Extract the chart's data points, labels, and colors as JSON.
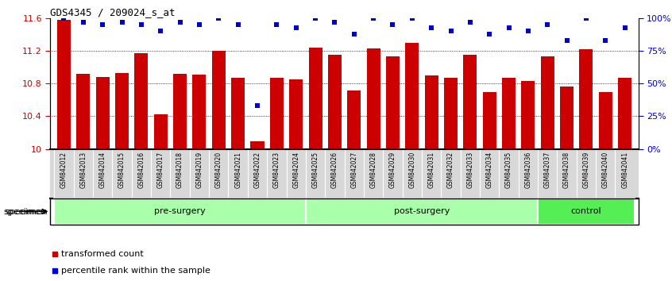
{
  "title": "GDS4345 / 209024_s_at",
  "categories": [
    "GSM842012",
    "GSM842013",
    "GSM842014",
    "GSM842015",
    "GSM842016",
    "GSM842017",
    "GSM842018",
    "GSM842019",
    "GSM842020",
    "GSM842021",
    "GSM842022",
    "GSM842023",
    "GSM842024",
    "GSM842025",
    "GSM842026",
    "GSM842027",
    "GSM842028",
    "GSM842029",
    "GSM842030",
    "GSM842031",
    "GSM842032",
    "GSM842033",
    "GSM842034",
    "GSM842035",
    "GSM842036",
    "GSM842037",
    "GSM842038",
    "GSM842039",
    "GSM842040",
    "GSM842041"
  ],
  "bar_values": [
    11.58,
    10.92,
    10.88,
    10.93,
    11.17,
    10.42,
    10.92,
    10.91,
    11.2,
    10.87,
    10.09,
    10.87,
    10.85,
    11.24,
    11.15,
    10.72,
    11.23,
    11.13,
    11.3,
    10.9,
    10.87,
    11.15,
    10.7,
    10.87,
    10.83,
    11.13,
    10.76,
    11.22,
    10.7,
    10.87
  ],
  "percentile_values": [
    100,
    97,
    95,
    97,
    95,
    90,
    97,
    95,
    100,
    95,
    33,
    95,
    93,
    100,
    97,
    88,
    100,
    95,
    100,
    93,
    90,
    97,
    88,
    93,
    90,
    95,
    83,
    100,
    83,
    93
  ],
  "bar_color": "#cc0000",
  "percentile_color": "#0000cc",
  "ylim_left": [
    10.0,
    11.6
  ],
  "ylim_right": [
    0,
    100
  ],
  "yticks_left": [
    10.0,
    10.4,
    10.8,
    11.2,
    11.6
  ],
  "ytick_labels_left": [
    "10",
    "10.4",
    "10.8",
    "11.2",
    "11.6"
  ],
  "yticks_right": [
    0,
    25,
    50,
    75,
    100
  ],
  "ytick_labels_right": [
    "0%",
    "25%",
    "50%",
    "75%",
    "100%"
  ],
  "groups": [
    {
      "label": "pre-surgery",
      "start": 0,
      "end": 13,
      "color": "#aaffaa"
    },
    {
      "label": "post-surgery",
      "start": 13,
      "end": 25,
      "color": "#aaffaa"
    },
    {
      "label": "control",
      "start": 25,
      "end": 30,
      "color": "#55ee55"
    }
  ],
  "legend_items": [
    {
      "label": "transformed count",
      "color": "#cc0000"
    },
    {
      "label": "percentile rank within the sample",
      "color": "#0000cc"
    }
  ],
  "tick_label_color": "#cc0000",
  "right_tick_color": "#0000cc",
  "bar_bottom": 10.0
}
